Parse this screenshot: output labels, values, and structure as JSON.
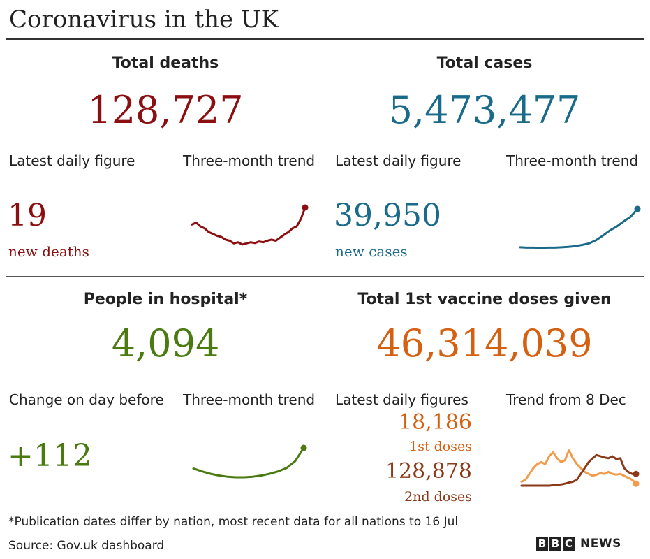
{
  "title": "Coronavirus in the UK",
  "colors": {
    "deaths": "#8b0e10",
    "cases": "#1a6a8a",
    "hospital": "#4a7a10",
    "vaccine": "#d66012",
    "dose1_line": "#f29b4a",
    "dose2_line": "#8b3a1a"
  },
  "deaths": {
    "heading": "Total deaths",
    "total": "128,727",
    "latest_label": "Latest daily figure",
    "trend_label": "Three-month trend",
    "daily_value": "19",
    "daily_unit": "new deaths"
  },
  "cases": {
    "heading": "Total cases",
    "total": "5,473,477",
    "latest_label": "Latest daily figure",
    "trend_label": "Three-month trend",
    "daily_value": "39,950",
    "daily_unit": "new cases"
  },
  "hospital": {
    "heading": "People in hospital*",
    "total": "4,094",
    "latest_label": "Change on day before",
    "trend_label": "Three-month trend",
    "daily_value": "+112"
  },
  "vaccine": {
    "heading": "Total 1st vaccine doses given",
    "total": "46,314,039",
    "latest_label": "Latest daily figures",
    "trend_label": "Trend from 8 Dec",
    "dose1_value": "18,186",
    "dose1_label": "1st doses",
    "dose2_value": "128,878",
    "dose2_label": "2nd doses"
  },
  "footnote": "*Publication dates differ by nation, most recent data for all nations to 16 Jul",
  "source": "Source: Gov.uk dashboard",
  "logo": {
    "b1": "B",
    "b2": "B",
    "b3": "C",
    "news": "NEWS"
  },
  "chart_data": [
    {
      "type": "line",
      "series": [
        {
          "values": [
            0.55,
            0.6,
            0.5,
            0.45,
            0.35,
            0.3,
            0.25,
            0.22,
            0.15,
            0.12,
            0.05,
            0.08,
            0.02,
            0.05,
            0.08,
            0.06,
            0.1,
            0.08,
            0.12,
            0.15,
            0.12,
            0.2,
            0.28,
            0.35,
            0.45,
            0.5,
            0.7,
            1.0
          ]
        }
      ]
    },
    {
      "type": "line",
      "series": [
        {
          "values": [
            0.02,
            0.01,
            0.01,
            0.0,
            0.01,
            0.01,
            0.02,
            0.03,
            0.05,
            0.08,
            0.12,
            0.2,
            0.32,
            0.45,
            0.55,
            0.68,
            0.8,
            1.0
          ]
        }
      ]
    },
    {
      "type": "line",
      "series": [
        {
          "values": [
            0.3,
            0.2,
            0.12,
            0.06,
            0.02,
            0.0,
            0.0,
            0.02,
            0.06,
            0.12,
            0.2,
            0.32,
            0.55,
            1.0
          ]
        }
      ]
    },
    {
      "type": "line",
      "series": [
        {
          "name": "1st doses",
          "values": [
            0.1,
            0.15,
            0.3,
            0.45,
            0.55,
            0.6,
            0.55,
            0.75,
            0.85,
            0.7,
            0.6,
            0.65,
            0.9,
            0.7,
            0.55,
            0.45,
            0.35,
            0.3,
            0.25,
            0.28,
            0.32,
            0.3,
            0.35,
            0.3,
            0.28,
            0.3,
            0.25,
            0.2,
            0.15,
            0.05
          ]
        },
        {
          "name": "2nd doses",
          "values": [
            0.0,
            0.0,
            0.0,
            0.0,
            0.0,
            0.0,
            0.0,
            0.0,
            0.01,
            0.02,
            0.03,
            0.05,
            0.08,
            0.1,
            0.15,
            0.3,
            0.45,
            0.6,
            0.7,
            0.78,
            0.75,
            0.72,
            0.7,
            0.75,
            0.68,
            0.7,
            0.45,
            0.35,
            0.3,
            0.3
          ]
        }
      ]
    }
  ]
}
